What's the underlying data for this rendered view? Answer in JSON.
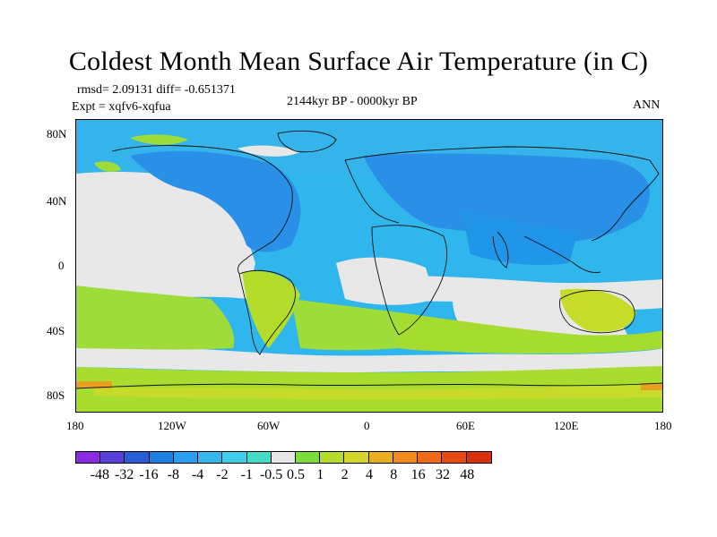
{
  "title": "Coldest Month Mean Surface Air Temperature (in C)",
  "stats": "rmsd= 2.09131 diff= -0.651371",
  "experiment": "Expt = xqfv6-xqfua",
  "period": "2144kyr BP - 0000kyr BP",
  "season": "ANN",
  "map": {
    "lat_labels": [
      "80N",
      "40N",
      "0",
      "40S",
      "80S"
    ],
    "lon_labels": [
      "180",
      "120W",
      "60W",
      "0",
      "60E",
      "120E",
      "180"
    ]
  },
  "colorbar": {
    "colors": [
      "#8a2be2",
      "#5a3fd8",
      "#2a5ed6",
      "#1f7fe0",
      "#2a9ff0",
      "#35b7ee",
      "#3fcce8",
      "#44dcc8",
      "#e6e6e6",
      "#7ddc3a",
      "#b4dc2a",
      "#d4d42a",
      "#e8b020",
      "#f08a1c",
      "#f06a1c",
      "#e84a14",
      "#d8300e"
    ],
    "labels": [
      "-48",
      "-32",
      "-16",
      "-8",
      "-4",
      "-2",
      "-1",
      "-0.5",
      "0.5",
      "1",
      "2",
      "4",
      "8",
      "16",
      "32",
      "48"
    ]
  },
  "palette": {
    "ocean_cold": "#2fb6ec",
    "land_cold": "#2a8fe6",
    "neutral": "#e8e8e8",
    "warm_light": "#9edc3a",
    "warm": "#c7dc2a",
    "hot": "#e8a020",
    "coast": "#111111"
  }
}
